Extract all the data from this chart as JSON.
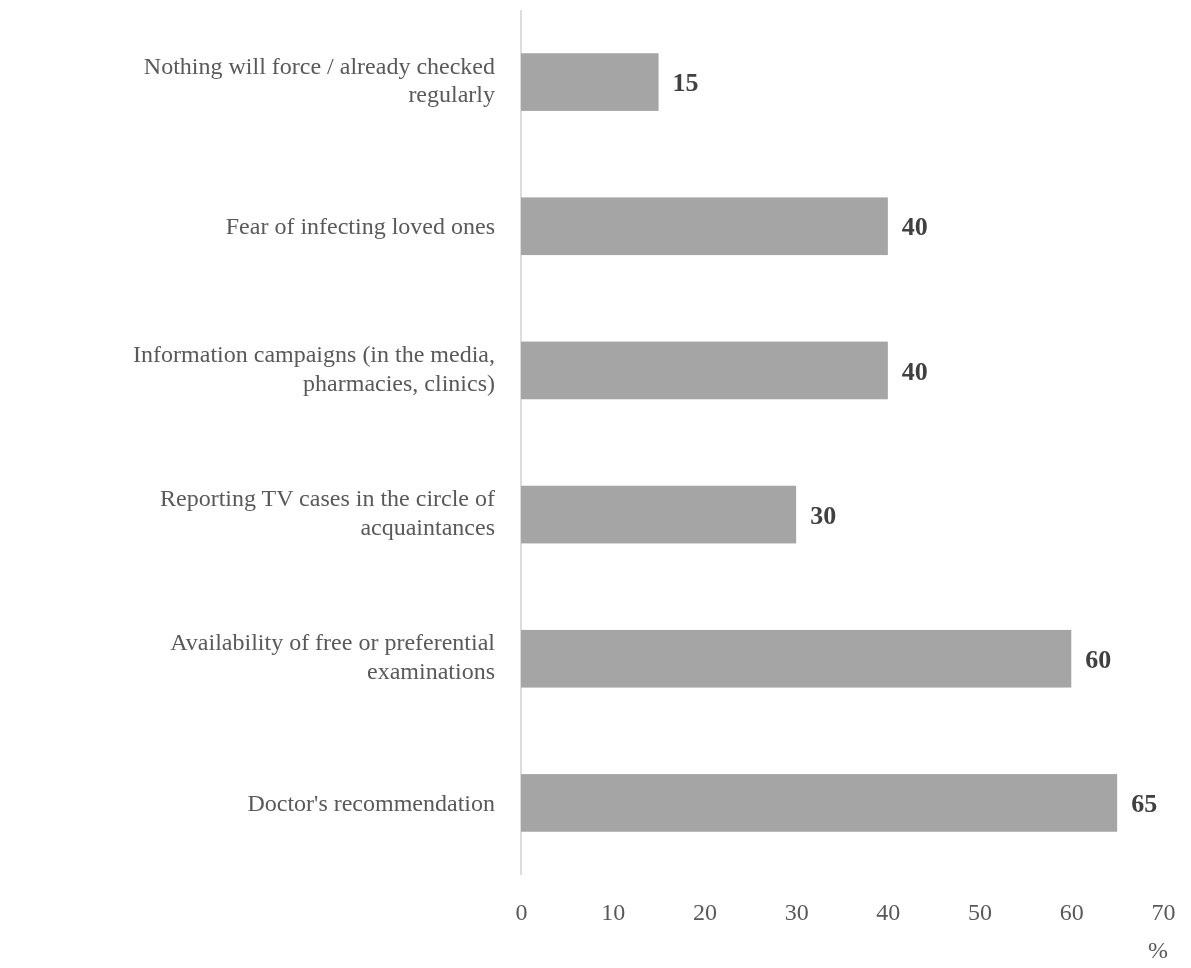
{
  "chart_data": {
    "type": "bar",
    "orientation": "horizontal",
    "categories": [
      "Nothing will force / already checked regularly",
      "Fear of infecting loved ones",
      "Information campaigns (in the media, pharmacies, clinics)",
      "Reporting TV cases in the circle of acquaintances",
      "Availability of free or preferential examinations",
      "Doctor's recommendation"
    ],
    "values": [
      15,
      40,
      40,
      30,
      60,
      65
    ],
    "color": "#a5a5a5",
    "xlim": [
      0,
      70
    ],
    "xticks": [
      0,
      10,
      20,
      30,
      40,
      50,
      60,
      70
    ],
    "xlabel": "%",
    "data_labels": true,
    "grid": false
  }
}
